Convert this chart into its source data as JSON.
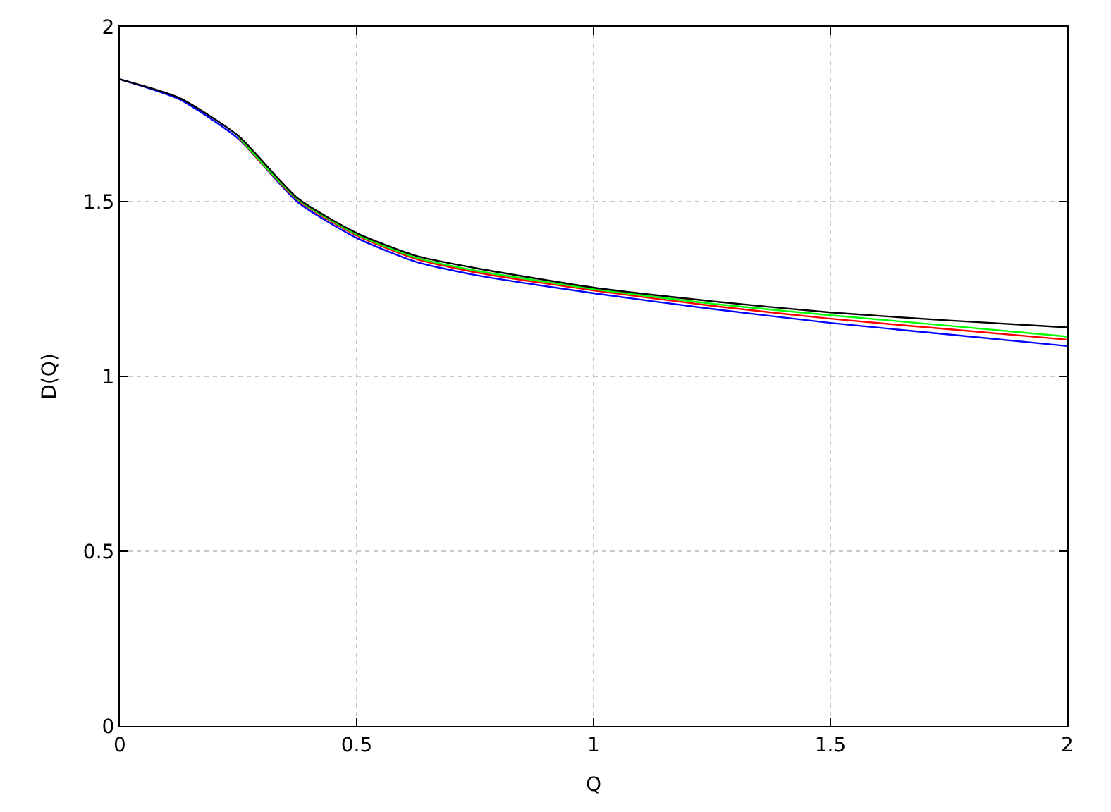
{
  "chart_data": {
    "type": "line",
    "xlabel": "Q",
    "ylabel": "D(Q)",
    "x": [
      0,
      0.125,
      0.25,
      0.375,
      0.5,
      0.625,
      0.75,
      1,
      1.25,
      1.5,
      1.75,
      2
    ],
    "series": [
      {
        "color": "#0000ff",
        "values": [
          1.85,
          1.793,
          1.68,
          1.499,
          1.396,
          1.328,
          1.29,
          1.238,
          1.193,
          1.153,
          1.12,
          1.087
        ]
      },
      {
        "color": "#ff0000",
        "values": [
          null,
          null,
          1.684,
          1.505,
          1.403,
          1.336,
          1.298,
          1.246,
          1.202,
          1.165,
          1.135,
          1.105
        ]
      },
      {
        "color": "#00ff00",
        "values": [
          null,
          null,
          1.686,
          1.507,
          1.406,
          1.34,
          1.303,
          1.25,
          1.208,
          1.175,
          1.145,
          1.114
        ]
      },
      {
        "color": "#000000",
        "values": [
          1.85,
          1.797,
          1.688,
          1.51,
          1.41,
          1.345,
          1.31,
          1.254,
          1.215,
          1.183,
          1.16,
          1.14
        ]
      }
    ],
    "xlim": [
      0,
      2
    ],
    "xticks": [
      0,
      0.5,
      1,
      1.5,
      2
    ],
    "ylim": [
      0,
      2
    ],
    "yticks": [
      0,
      0.5,
      1,
      1.5,
      2
    ],
    "grid": true,
    "marker": "none",
    "line_style": "solid"
  }
}
